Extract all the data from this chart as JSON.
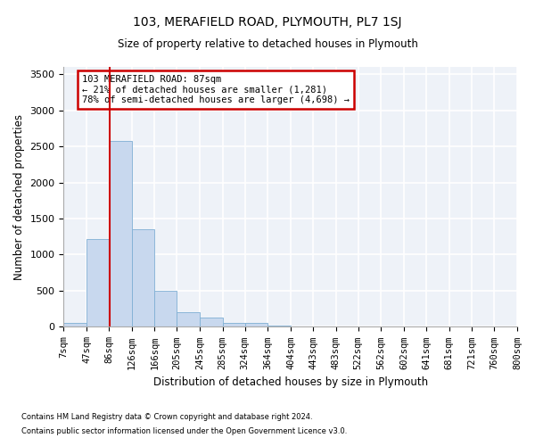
{
  "title1": "103, MERAFIELD ROAD, PLYMOUTH, PL7 1SJ",
  "title2": "Size of property relative to detached houses in Plymouth",
  "xlabel": "Distribution of detached houses by size in Plymouth",
  "ylabel": "Number of detached properties",
  "footer1": "Contains HM Land Registry data © Crown copyright and database right 2024.",
  "footer2": "Contains public sector information licensed under the Open Government Licence v3.0.",
  "annotation_line1": "103 MERAFIELD ROAD: 87sqm",
  "annotation_line2": "← 21% of detached houses are smaller (1,281)",
  "annotation_line3": "78% of semi-detached houses are larger (4,698) →",
  "property_size": 87,
  "bar_edges": [
    7,
    47,
    86,
    126,
    166,
    205,
    245,
    285,
    324,
    364,
    404,
    443,
    483,
    522,
    562,
    602,
    641,
    681,
    721,
    760,
    800
  ],
  "bar_heights": [
    50,
    1210,
    2580,
    1350,
    500,
    200,
    130,
    50,
    50,
    20,
    10,
    5,
    5,
    0,
    0,
    0,
    0,
    0,
    0,
    0
  ],
  "bar_color": "#c8d8ee",
  "bar_edge_color": "#7fafd4",
  "red_line_color": "#cc0000",
  "annotation_box_color": "#cc0000",
  "background_color": "#eef2f8",
  "grid_color": "#ffffff",
  "ylim": [
    0,
    3600
  ],
  "yticks": [
    0,
    500,
    1000,
    1500,
    2000,
    2500,
    3000,
    3500
  ]
}
